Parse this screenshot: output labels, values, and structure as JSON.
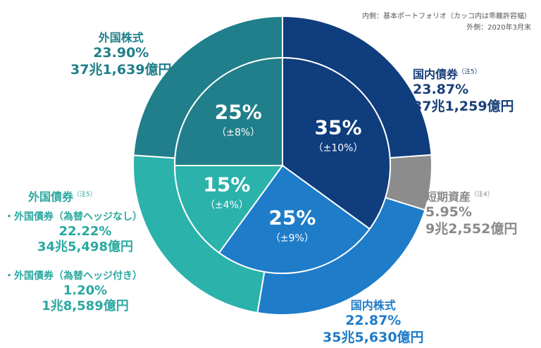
{
  "notes": {
    "inner": "内側：基本ポートフォリオ（カッコ内は乖離許容幅）",
    "outer": "外側：2020年3月末"
  },
  "chart_data": {
    "type": "pie",
    "rings": {
      "outer": {
        "description_label": "外側：2020年3月末",
        "slices": [
          {
            "name": "国内債券",
            "value": 23.87,
            "amount": "37兆1,259億円",
            "color": "#0f3d7d"
          },
          {
            "name": "短期資産",
            "value": 5.95,
            "amount": "9兆2,552億円",
            "color": "#8c8c8c"
          },
          {
            "name": "国内株式",
            "value": 22.87,
            "amount": "35兆5,630億円",
            "color": "#1e7cc9"
          },
          {
            "name": "外国債券",
            "value": 23.42,
            "amount": "",
            "color": "#2ab2ab"
          },
          {
            "name": "外国株式",
            "value": 23.9,
            "amount": "37兆1,639億円",
            "color": "#207f8a"
          }
        ]
      },
      "inner": {
        "description_label": "内側：基本ポートフォリオ（カッコ内は乖離許容幅）",
        "slices": [
          {
            "name": "国内債券",
            "value": 35,
            "label": "35%",
            "band": "（±10%）",
            "color": "#0f3d7d"
          },
          {
            "name": "国内株式",
            "value": 25,
            "label": "25%",
            "band": "（±9%）",
            "color": "#1e7cc9"
          },
          {
            "name": "外国債券",
            "value": 15,
            "label": "15%",
            "band": "（±4%）",
            "color": "#2ab2ab"
          },
          {
            "name": "外国株式",
            "value": 25,
            "label": "25%",
            "band": "（±8%）",
            "color": "#207f8a"
          }
        ]
      }
    }
  },
  "labels": {
    "dom_bond": {
      "name": "国内債券",
      "note": "（注5）",
      "value": "23.87%",
      "amount": "37兆1,259億円"
    },
    "short": {
      "name": "短期資産",
      "note": "（注4）",
      "value": "5.95%",
      "amount": "9兆2,552億円"
    },
    "dom_eq": {
      "name": "国内株式",
      "value": "22.87%",
      "amount": "35兆5,630億円"
    },
    "for_eq": {
      "name": "外国株式",
      "value": "23.90%",
      "amount": "37兆1,639億円"
    },
    "for_bond": {
      "name": "外国債券",
      "note": "（注5）",
      "sub1": {
        "name": "・外国債券（為替ヘッジなし）",
        "value": "22.22%",
        "amount": "34兆5,498億円"
      },
      "sub2": {
        "name": "・外国債券（為替ヘッジ付き）",
        "value": "1.20%",
        "amount": "1兆8,589億円"
      }
    }
  }
}
